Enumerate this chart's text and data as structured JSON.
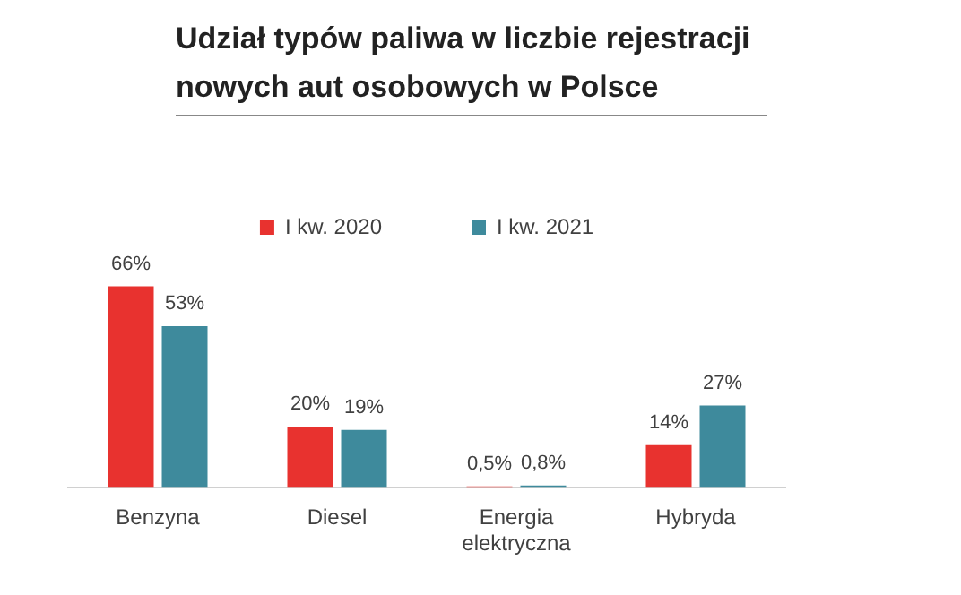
{
  "chart_data": {
    "type": "bar",
    "title": "Udział typów paliwa w liczbie rejestracji nowych aut osobowych w Polsce",
    "categories": [
      "Benzyna",
      "Diesel",
      "Energia elektryczna",
      "Hybryda"
    ],
    "series": [
      {
        "name": "I kw. 2020",
        "color": "#e8322f",
        "values": [
          66,
          20,
          0.5,
          14
        ],
        "value_labels": [
          "66%",
          "20%",
          "0,5%",
          "14%"
        ]
      },
      {
        "name": "I kw. 2021",
        "color": "#3e8a9c",
        "values": [
          53,
          19,
          0.8,
          27
        ],
        "value_labels": [
          "53%",
          "19%",
          "0,8%",
          "27%"
        ]
      }
    ],
    "legend": "top",
    "grid": false
  }
}
